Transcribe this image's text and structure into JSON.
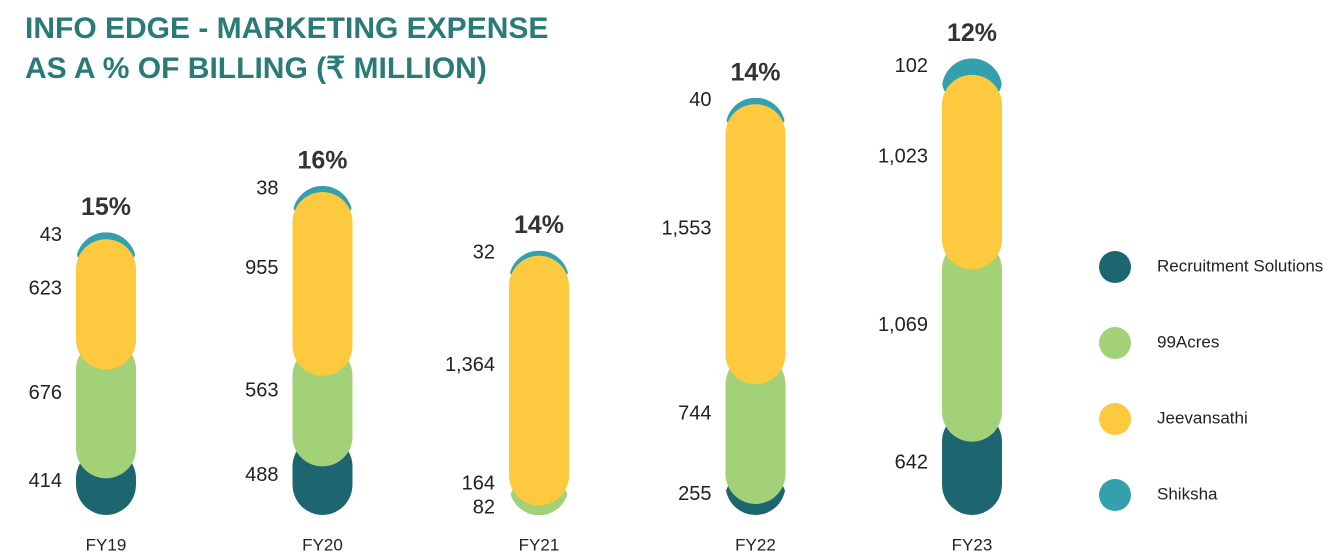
{
  "chart_data": {
    "type": "stacked-capsule-bar",
    "title": [
      "INFO EDGE - MARKETING EXPENSE",
      "AS A % OF BILLING (₹ MILLION)"
    ],
    "categories": [
      "FY19",
      "FY20",
      "FY21",
      "FY22",
      "FY23"
    ],
    "top_labels": [
      "15%",
      "16%",
      "14%",
      "14%",
      "12%"
    ],
    "series": [
      {
        "name": "Recruitment Solutions",
        "color": "#1d6670",
        "values": [
          414,
          488,
          82,
          255,
          642
        ]
      },
      {
        "name": "99Acres",
        "color": "#a3d177",
        "values": [
          676,
          563,
          164,
          744,
          1069
        ],
        "value_labels": [
          "676",
          "563",
          "164",
          "744",
          "1,069"
        ]
      },
      {
        "name": "Jeevansathi",
        "color": "#fdc93f",
        "values": [
          623,
          955,
          1364,
          1553,
          1023
        ],
        "value_labels": [
          "623",
          "955",
          "1,364",
          "1,553",
          "1,023"
        ]
      },
      {
        "name": "Shiksha",
        "color": "#35a0ad",
        "values": [
          43,
          38,
          32,
          40,
          102
        ]
      }
    ]
  }
}
